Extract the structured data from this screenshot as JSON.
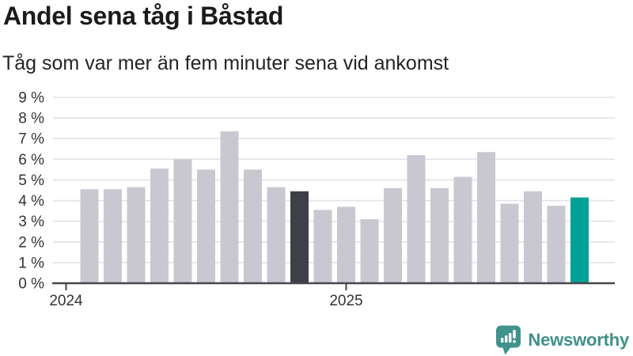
{
  "header": {
    "title": "Andel sena tåg i Båstad",
    "subtitle": "Tåg som var mer än fem minuter sena vid ankomst"
  },
  "branding": {
    "logo_text": "Newsworthy",
    "logo_color": "#3f918b",
    "logo_icon": "speech-bubble-bar-chart-exclamation"
  },
  "colors": {
    "bar_default": "#c9c8d1",
    "bar_highlight_dark": "#3f3f4a",
    "bar_highlight_accent": "#00a096",
    "gridline": "#e3e3e7",
    "axis_line": "#46464b",
    "tick_text": "#333333",
    "background": "#ffffff"
  },
  "chart_data": {
    "type": "bar",
    "title": "Andel sena tåg i Båstad",
    "subtitle": "Tåg som var mer än fem minuter sena vid ankomst",
    "unit": "%",
    "categories": [
      "2024-02",
      "2024-03",
      "2024-04",
      "2024-05",
      "2024-06",
      "2024-07",
      "2024-08",
      "2024-09",
      "2024-10",
      "2024-11",
      "2024-12",
      "2025-01",
      "2025-02",
      "2025-03",
      "2025-04",
      "2025-05",
      "2025-06",
      "2025-07",
      "2025-08",
      "2025-09",
      "2025-10",
      "2025-11"
    ],
    "values": [
      4.55,
      4.55,
      4.65,
      5.55,
      6.0,
      5.5,
      7.35,
      5.5,
      4.65,
      4.45,
      3.55,
      3.7,
      3.1,
      4.6,
      6.2,
      4.6,
      5.15,
      6.35,
      3.85,
      4.45,
      3.75,
      4.15
    ],
    "highlight_dark": {
      "index": 9,
      "category": "2024-11"
    },
    "highlight_accent": {
      "index": 21,
      "category": "2025-11"
    },
    "ylim": [
      0,
      9
    ],
    "ytick_labels": [
      "0 %",
      "1 %",
      "2 %",
      "3 %",
      "4 %",
      "5 %",
      "6 %",
      "7 %",
      "8 %",
      "9 %"
    ],
    "xticks": [
      {
        "label": "2024",
        "month_offset": 0
      },
      {
        "label": "2025",
        "month_offset": 12
      }
    ],
    "grid": true,
    "legend": "none"
  }
}
